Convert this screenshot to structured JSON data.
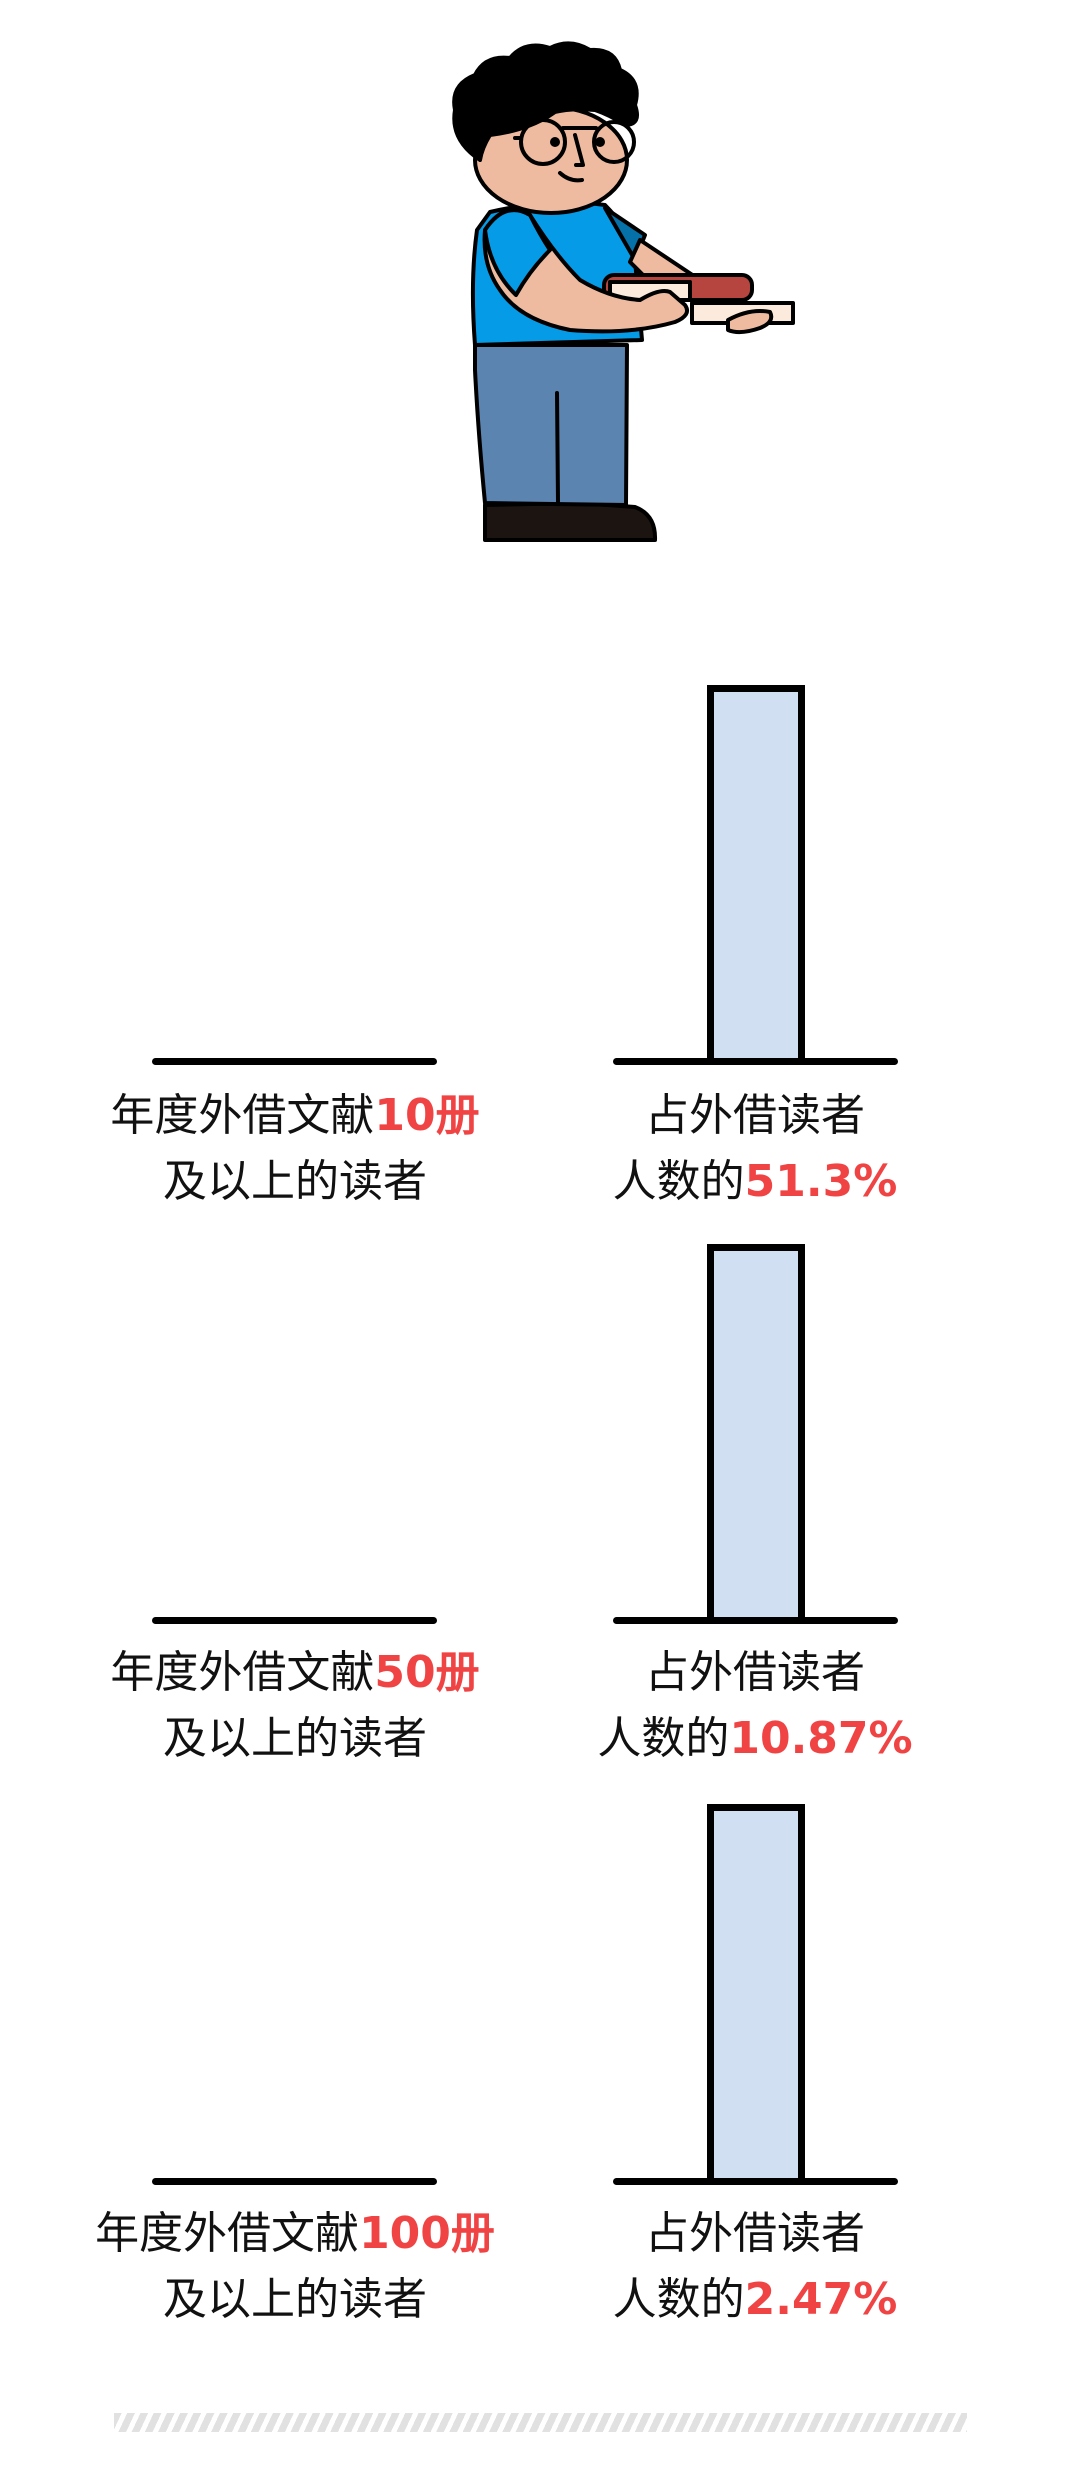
{
  "colors": {
    "highlight": "#f04444",
    "bar_fill": "#d0e0f2",
    "shirt": "#069be6",
    "pants": "#5b84b0",
    "skin": "#eebba0",
    "book_red": "#b5453e"
  },
  "blocks": [
    {
      "left_prefix": "年度外借文献",
      "left_highlight": "10册",
      "left_line2": "及以上的读者",
      "right_line1": "占外借读者",
      "right_prefix": "人数的",
      "right_highlight": "51.3%"
    },
    {
      "left_prefix": "年度外借文献",
      "left_highlight": "50册",
      "left_line2": "及以上的读者",
      "right_line1": "占外借读者",
      "right_prefix": "人数的",
      "right_highlight": "10.87%"
    },
    {
      "left_prefix": "年度外借文献",
      "left_highlight": "100册",
      "left_line2": "及以上的读者",
      "right_line1": "占外借读者",
      "right_prefix": "人数的",
      "right_highlight": "2.47%"
    }
  ]
}
